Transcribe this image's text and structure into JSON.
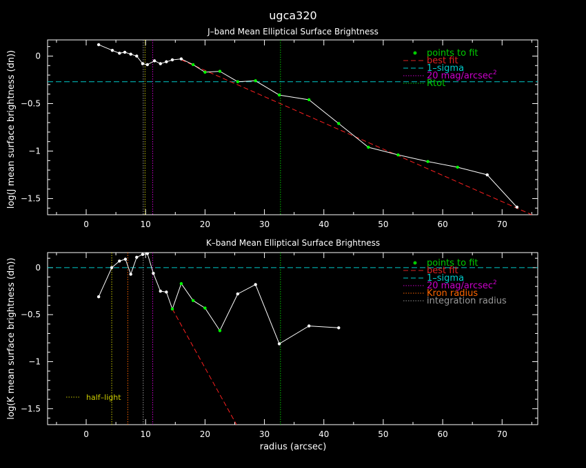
{
  "figure": {
    "title": "ugca320",
    "xlabel": "radius (arcsec)"
  },
  "colors": {
    "background": "#000000",
    "axes": "#ffffff",
    "data": "#ffffff",
    "fit_points": "#00ff00",
    "best_fit": "#ff2020",
    "one_sigma": "#00cccc",
    "mag20": "#cc00cc",
    "rtot": "#00cc00",
    "kron": "#ff6600",
    "integration": "#999999",
    "half_light": "#cccc00",
    "legend_points": "#00cc00",
    "legend_best": "#dd2222",
    "legend_sigma": "#00cccc",
    "legend_mag": "#cc00cc",
    "legend_kron": "#ff6600",
    "legend_integ": "#999999"
  },
  "chart_data": [
    {
      "type": "line",
      "title": "J–band Mean Elliptical Surface Brightness",
      "xlabel": "",
      "ylabel": "log(J mean surface brightness (dn))",
      "xlim": [
        -6.5,
        76
      ],
      "ylim": [
        -1.67,
        0.17
      ],
      "xticks": [
        0,
        10,
        20,
        30,
        40,
        50,
        60,
        70
      ],
      "xtick_labels": [
        "0",
        "10",
        "20",
        "30",
        "40",
        "50",
        "60",
        "70"
      ],
      "yticks": [
        0,
        -0.5,
        -1,
        -1.5
      ],
      "ytick_labels": [
        "0",
        "−0.5",
        "−1",
        "−1.5"
      ],
      "series": [
        {
          "kind": "profile",
          "x": [
            2.1,
            4.4,
            5.6,
            6.5,
            7.5,
            8.5,
            9.5,
            10.3,
            11.5,
            12.5,
            13.5,
            14.5,
            16,
            18,
            20,
            22.5,
            25.5,
            28.5,
            32.5,
            37.5,
            42.5,
            47.5,
            52.5,
            57.5,
            62.5,
            67.5,
            72.5
          ],
          "y": [
            0.12,
            0.06,
            0.03,
            0.04,
            0.02,
            0.0,
            -0.08,
            -0.09,
            -0.05,
            -0.08,
            -0.06,
            -0.04,
            -0.03,
            -0.09,
            -0.17,
            -0.16,
            -0.27,
            -0.26,
            -0.41,
            -0.46,
            -0.71,
            -0.96,
            -1.04,
            -1.11,
            -1.17,
            -1.25,
            -1.59
          ],
          "fit_points_x": [
            18,
            20,
            22.5,
            25.5,
            28.5,
            32.5,
            37.5,
            42.5,
            47.5,
            52.5,
            57.5,
            62.5
          ]
        },
        {
          "kind": "best_fit",
          "x": [
            16,
            75
          ],
          "y": [
            -0.04,
            -1.67
          ]
        }
      ],
      "hlines": [
        {
          "kind": "one_sigma",
          "y": -0.27
        }
      ],
      "vlines": [
        {
          "kind": "mag20",
          "x": 11.2
        },
        {
          "kind": "rtot",
          "x": 32.7
        },
        {
          "kind": "integration",
          "x": 9.6
        },
        {
          "kind": "half_light",
          "x": 9.9
        }
      ],
      "legend": {
        "entries": [
          {
            "style": "points",
            "label": "points to fit",
            "color_key": "legend_points"
          },
          {
            "style": "dashed",
            "label": "best fit",
            "color_key": "legend_best"
          },
          {
            "style": "dashed",
            "label": "1–sigma",
            "color_key": "legend_sigma"
          },
          {
            "style": "dotted",
            "label": "20 mag/arcsec",
            "sup": "2",
            "color_key": "legend_mag"
          },
          {
            "style": "dotted",
            "label": "Rtot",
            "color_key": "rtot"
          }
        ]
      }
    },
    {
      "type": "line",
      "title": "K–band Mean Elliptical Surface Brightness",
      "xlabel": "radius (arcsec)",
      "ylabel": "log(K mean surface brightness (dn))",
      "xlim": [
        -6.5,
        76
      ],
      "ylim": [
        -1.67,
        0.16
      ],
      "xticks": [
        0,
        10,
        20,
        30,
        40,
        50,
        60,
        70
      ],
      "xtick_labels": [
        "0",
        "10",
        "20",
        "30",
        "40",
        "50",
        "60",
        "70"
      ],
      "yticks": [
        0,
        -0.5,
        -1,
        -1.5
      ],
      "ytick_labels": [
        "0",
        "−0.5",
        "−1",
        "−1.5"
      ],
      "series": [
        {
          "kind": "profile",
          "x": [
            2.1,
            4.3,
            5.6,
            6.6,
            7.5,
            8.5,
            9.5,
            10.3,
            11.3,
            12.5,
            13.5,
            14.5,
            16,
            18,
            20,
            22.5,
            25.5,
            28.5,
            32.5,
            37.5,
            42.5
          ],
          "y": [
            -0.31,
            0.0,
            0.07,
            0.09,
            -0.07,
            0.11,
            0.14,
            0.15,
            -0.06,
            -0.25,
            -0.26,
            -0.44,
            -0.17,
            -0.35,
            -0.43,
            -0.67,
            -0.28,
            -0.18,
            -0.81,
            -0.62,
            -0.64
          ],
          "fit_points_x": [
            14.5,
            16,
            18,
            20,
            22.5
          ]
        },
        {
          "kind": "best_fit",
          "x": [
            14.5,
            25.3
          ],
          "y": [
            -0.44,
            -1.67
          ]
        }
      ],
      "hlines": [
        {
          "kind": "one_sigma",
          "y": 0.0
        }
      ],
      "vlines": [
        {
          "kind": "half_light",
          "x": 4.3
        },
        {
          "kind": "kron",
          "x": 7.0
        },
        {
          "kind": "integration",
          "x": 9.6
        },
        {
          "kind": "mag20",
          "x": 11.2
        },
        {
          "kind": "rtot",
          "x": 32.7
        }
      ],
      "annotation": {
        "text": "half–light"
      },
      "legend": {
        "entries": [
          {
            "style": "points",
            "label": "points to fit",
            "color_key": "legend_points"
          },
          {
            "style": "dashed",
            "label": "best fit",
            "color_key": "legend_best"
          },
          {
            "style": "dashed",
            "label": "1–sigma",
            "color_key": "legend_sigma"
          },
          {
            "style": "dotted",
            "label": "20 mag/arcsec",
            "sup": "2",
            "color_key": "legend_mag"
          },
          {
            "style": "dotted",
            "label": "Kron radius",
            "color_key": "legend_kron"
          },
          {
            "style": "dotted",
            "label": "integration radius",
            "color_key": "legend_integ"
          }
        ]
      }
    }
  ]
}
